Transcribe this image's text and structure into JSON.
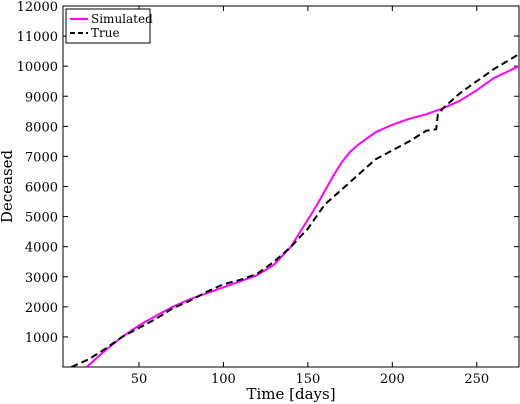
{
  "chart_data": {
    "type": "line",
    "title": "",
    "xlabel": "Time [days]",
    "ylabel": "Deceased",
    "xlim": [
      5,
      275
    ],
    "ylim": [
      0,
      12000
    ],
    "xticks": [
      50,
      100,
      150,
      200,
      250
    ],
    "yticks": [
      1000,
      2000,
      3000,
      4000,
      5000,
      6000,
      7000,
      8000,
      9000,
      10000,
      11000,
      12000
    ],
    "grid": false,
    "legend_position": "top-left",
    "series": [
      {
        "name": "Simulated",
        "color": "#ff00ff",
        "style": "solid",
        "x": [
          19,
          30,
          40,
          50,
          60,
          70,
          80,
          90,
          100,
          110,
          120,
          130,
          140,
          145,
          150,
          155,
          160,
          165,
          170,
          175,
          180,
          190,
          200,
          210,
          220,
          230,
          240,
          250,
          260,
          275
        ],
        "y": [
          0,
          550,
          1000,
          1380,
          1700,
          2000,
          2250,
          2450,
          2650,
          2850,
          3050,
          3400,
          4000,
          4450,
          4900,
          5350,
          5850,
          6350,
          6800,
          7150,
          7400,
          7800,
          8050,
          8250,
          8400,
          8600,
          8850,
          9200,
          9600,
          10000
        ]
      },
      {
        "name": "True",
        "color": "#000000",
        "style": "dashed",
        "x": [
          10,
          20,
          30,
          40,
          50,
          60,
          70,
          80,
          90,
          100,
          110,
          120,
          130,
          140,
          150,
          155,
          160,
          170,
          180,
          190,
          200,
          210,
          220,
          226,
          227,
          230,
          240,
          250,
          260,
          275
        ],
        "y": [
          0,
          250,
          600,
          1000,
          1300,
          1600,
          1950,
          2200,
          2500,
          2750,
          2900,
          3100,
          3500,
          4000,
          4600,
          5000,
          5400,
          5900,
          6400,
          6900,
          7200,
          7500,
          7850,
          7900,
          8400,
          8600,
          9100,
          9500,
          9900,
          10400
        ]
      }
    ]
  }
}
